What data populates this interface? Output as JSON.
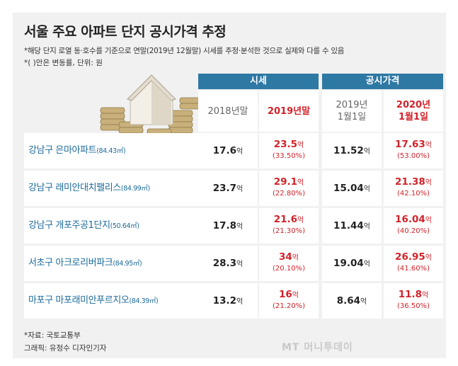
{
  "title": "서울 주요 아파트 단지 공시가격 추정",
  "notes": [
    "*해당 단지 로열 동·호수를 기준으로 연말(2019년 12월말) 시세를 추정·분석한 것으로 실제와 다를 수 있음",
    "*(  )안은 변동률, 단위: 원"
  ],
  "groups": {
    "market": "시세",
    "official": "공시가격"
  },
  "columns": [
    {
      "line1": "2018년말",
      "line2": ""
    },
    {
      "line1": "2019년말",
      "line2": ""
    },
    {
      "line1": "2019년",
      "line2": "1월1일"
    },
    {
      "line1": "2020년",
      "line2": "1월1일"
    }
  ],
  "unit": "억",
  "rows": [
    {
      "name": "강남구 은마아파트",
      "area": "(84.43㎡)",
      "m2018": "17.6",
      "m2019": "23.5",
      "m2019_pct": "(33.50%)",
      "o2019": "11.52",
      "o2020": "17.63",
      "o2020_pct": "(53.00%)"
    },
    {
      "name": "강남구 래미안대치팰리스",
      "area": "(84.99㎡)",
      "m2018": "23.7",
      "m2019": "29.1",
      "m2019_pct": "(22.80%)",
      "o2019": "15.04",
      "o2020": "21.38",
      "o2020_pct": "(42.10%)"
    },
    {
      "name": "강남구 개포주공1단지",
      "area": "(50.64㎡)",
      "m2018": "17.8",
      "m2019": "21.6",
      "m2019_pct": "(21.30%)",
      "o2019": "11.44",
      "o2020": "16.04",
      "o2020_pct": "(40.20%)"
    },
    {
      "name": "서초구 아크로리버파크",
      "area": "(84.95㎡)",
      "m2018": "28.3",
      "m2019": "34",
      "m2019_pct": "(20.10%)",
      "o2019": "19.04",
      "o2020": "26.95",
      "o2020_pct": "(41.60%)"
    },
    {
      "name": "마포구 마포래미안푸르지오",
      "area": "(84.39㎡)",
      "m2018": "13.2",
      "m2019": "16",
      "m2019_pct": "(21.20%)",
      "o2019": "8.64",
      "o2020": "11.8",
      "o2020_pct": "(36.50%)"
    }
  ],
  "footer": {
    "source": "*자료: 국토교통부",
    "graphic": "그래픽: 유정수 디자인기자",
    "watermark": "MT 머니투데이"
  },
  "colors": {
    "header_blue": "#2e78a4",
    "name_blue": "#1d6b9a",
    "highlight_red": "#d2232a"
  },
  "icons": [
    "house-coins-illustration"
  ]
}
